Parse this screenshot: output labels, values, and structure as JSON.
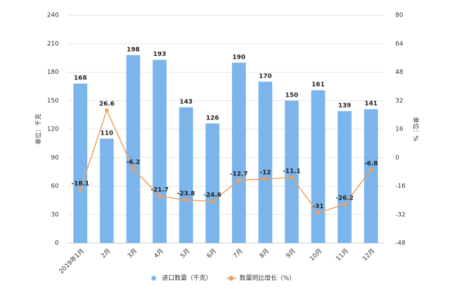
{
  "chart_data": {
    "type": "bar",
    "categories": [
      "2019年1月",
      "2月",
      "3月",
      "4月",
      "5月",
      "6月",
      "7月",
      "8月",
      "9月",
      "10月",
      "11月",
      "12月"
    ],
    "y_label": "单位：千克",
    "y2_label": "单位：%",
    "ylim": [
      0,
      240
    ],
    "yticks": [
      0,
      30,
      60,
      90,
      120,
      150,
      180,
      210,
      240
    ],
    "y2lim": [
      -48,
      80
    ],
    "y2ticks": [
      -48,
      -32,
      -16,
      0,
      16,
      32,
      48,
      64,
      80
    ],
    "grid": true,
    "legend": "bottom",
    "series": [
      {
        "name": "进口数量（千克）",
        "type": "bar",
        "color": "#7cb5ec",
        "values": [
          168,
          110,
          198,
          193,
          143,
          126,
          190,
          170,
          150,
          161,
          139,
          141
        ]
      },
      {
        "name": "数量同比增长（%）",
        "type": "line",
        "axis": "y2",
        "color": "#f0a05a",
        "values": [
          -18.1,
          26.6,
          -6.2,
          -21.7,
          -23.8,
          -24.6,
          -12.7,
          -12,
          -11.1,
          -31,
          -26.2,
          -6.8
        ]
      }
    ]
  }
}
